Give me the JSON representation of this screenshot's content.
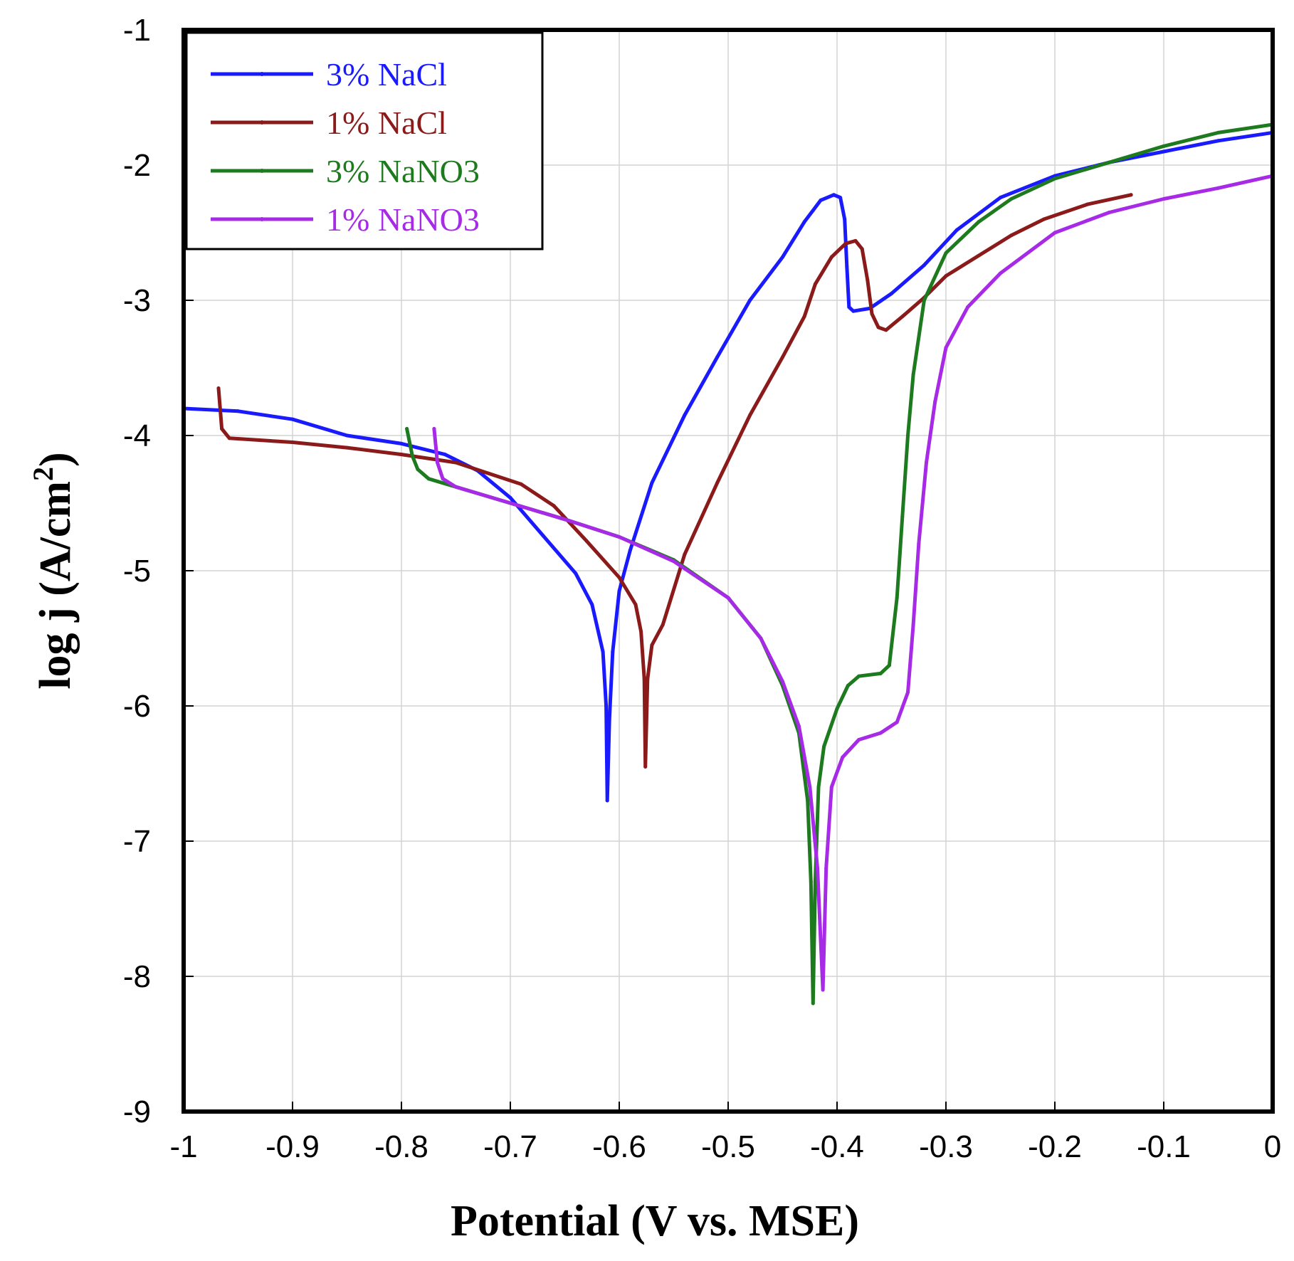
{
  "chart_data": {
    "type": "line",
    "title": "",
    "xlabel": "Potential (V vs. MSE)",
    "ylabel_main": "log j (A/cm",
    "ylabel_sup": "2",
    "ylabel_close": ")",
    "xlim": [
      -1,
      0
    ],
    "ylim": [
      -9,
      -1
    ],
    "x_ticks": [
      -1,
      -0.9,
      -0.8,
      -0.7,
      -0.6,
      -0.5,
      -0.4,
      -0.3,
      -0.2,
      -0.1,
      0
    ],
    "x_tick_labels": [
      "-1",
      "-0.9",
      "-0.8",
      "-0.7",
      "-0.6",
      "-0.5",
      "-0.4",
      "-0.3",
      "-0.2",
      "-0.1",
      "0"
    ],
    "y_ticks": [
      -1,
      -2,
      -3,
      -4,
      -5,
      -6,
      -7,
      -8,
      -9
    ],
    "y_tick_labels": [
      "-1",
      "-2",
      "-3",
      "-4",
      "-5",
      "-6",
      "-7",
      "-8",
      "-9"
    ],
    "legend_position": "top-left",
    "series": [
      {
        "name": "3% NaCl",
        "color": "#1a1aff",
        "points": [
          [
            -1.0,
            -3.8
          ],
          [
            -0.95,
            -3.82
          ],
          [
            -0.9,
            -3.88
          ],
          [
            -0.85,
            -4.0
          ],
          [
            -0.8,
            -4.06
          ],
          [
            -0.76,
            -4.14
          ],
          [
            -0.73,
            -4.26
          ],
          [
            -0.7,
            -4.46
          ],
          [
            -0.67,
            -4.74
          ],
          [
            -0.64,
            -5.02
          ],
          [
            -0.625,
            -5.25
          ],
          [
            -0.615,
            -5.6
          ],
          [
            -0.612,
            -6.0
          ],
          [
            -0.611,
            -6.7
          ],
          [
            -0.609,
            -6.1
          ],
          [
            -0.606,
            -5.6
          ],
          [
            -0.6,
            -5.15
          ],
          [
            -0.59,
            -4.85
          ],
          [
            -0.57,
            -4.35
          ],
          [
            -0.54,
            -3.85
          ],
          [
            -0.51,
            -3.42
          ],
          [
            -0.48,
            -3.0
          ],
          [
            -0.45,
            -2.68
          ],
          [
            -0.43,
            -2.42
          ],
          [
            -0.415,
            -2.26
          ],
          [
            -0.403,
            -2.22
          ],
          [
            -0.397,
            -2.24
          ],
          [
            -0.393,
            -2.4
          ],
          [
            -0.391,
            -2.75
          ],
          [
            -0.389,
            -3.05
          ],
          [
            -0.385,
            -3.08
          ],
          [
            -0.37,
            -3.06
          ],
          [
            -0.35,
            -2.95
          ],
          [
            -0.32,
            -2.74
          ],
          [
            -0.29,
            -2.48
          ],
          [
            -0.25,
            -2.24
          ],
          [
            -0.2,
            -2.08
          ],
          [
            -0.15,
            -1.98
          ],
          [
            -0.1,
            -1.9
          ],
          [
            -0.05,
            -1.82
          ],
          [
            0.0,
            -1.76
          ]
        ]
      },
      {
        "name": "1% NaCl",
        "color": "#8b1a1a",
        "points": [
          [
            -0.968,
            -3.65
          ],
          [
            -0.965,
            -3.95
          ],
          [
            -0.958,
            -4.02
          ],
          [
            -0.9,
            -4.05
          ],
          [
            -0.85,
            -4.09
          ],
          [
            -0.8,
            -4.14
          ],
          [
            -0.75,
            -4.2
          ],
          [
            -0.72,
            -4.28
          ],
          [
            -0.69,
            -4.36
          ],
          [
            -0.66,
            -4.52
          ],
          [
            -0.63,
            -4.78
          ],
          [
            -0.6,
            -5.05
          ],
          [
            -0.585,
            -5.25
          ],
          [
            -0.58,
            -5.45
          ],
          [
            -0.577,
            -5.8
          ],
          [
            -0.576,
            -6.45
          ],
          [
            -0.574,
            -5.8
          ],
          [
            -0.57,
            -5.55
          ],
          [
            -0.56,
            -5.4
          ],
          [
            -0.54,
            -4.88
          ],
          [
            -0.51,
            -4.35
          ],
          [
            -0.48,
            -3.85
          ],
          [
            -0.45,
            -3.42
          ],
          [
            -0.43,
            -3.12
          ],
          [
            -0.42,
            -2.88
          ],
          [
            -0.405,
            -2.68
          ],
          [
            -0.392,
            -2.58
          ],
          [
            -0.383,
            -2.56
          ],
          [
            -0.377,
            -2.62
          ],
          [
            -0.372,
            -2.85
          ],
          [
            -0.368,
            -3.1
          ],
          [
            -0.362,
            -3.2
          ],
          [
            -0.355,
            -3.22
          ],
          [
            -0.34,
            -3.12
          ],
          [
            -0.32,
            -2.98
          ],
          [
            -0.3,
            -2.82
          ],
          [
            -0.27,
            -2.67
          ],
          [
            -0.24,
            -2.52
          ],
          [
            -0.21,
            -2.4
          ],
          [
            -0.17,
            -2.29
          ],
          [
            -0.13,
            -2.22
          ]
        ]
      },
      {
        "name": "3% NaNO3",
        "color": "#1e7a1e",
        "points": [
          [
            -0.795,
            -3.95
          ],
          [
            -0.79,
            -4.15
          ],
          [
            -0.785,
            -4.25
          ],
          [
            -0.775,
            -4.32
          ],
          [
            -0.75,
            -4.38
          ],
          [
            -0.7,
            -4.5
          ],
          [
            -0.65,
            -4.62
          ],
          [
            -0.6,
            -4.75
          ],
          [
            -0.55,
            -4.92
          ],
          [
            -0.5,
            -5.2
          ],
          [
            -0.47,
            -5.5
          ],
          [
            -0.45,
            -5.85
          ],
          [
            -0.435,
            -6.2
          ],
          [
            -0.427,
            -6.7
          ],
          [
            -0.424,
            -7.3
          ],
          [
            -0.422,
            -8.2
          ],
          [
            -0.42,
            -7.3
          ],
          [
            -0.417,
            -6.6
          ],
          [
            -0.412,
            -6.3
          ],
          [
            -0.4,
            -6.02
          ],
          [
            -0.39,
            -5.85
          ],
          [
            -0.38,
            -5.78
          ],
          [
            -0.36,
            -5.76
          ],
          [
            -0.352,
            -5.7
          ],
          [
            -0.345,
            -5.2
          ],
          [
            -0.34,
            -4.6
          ],
          [
            -0.335,
            -4.0
          ],
          [
            -0.33,
            -3.55
          ],
          [
            -0.32,
            -3.0
          ],
          [
            -0.3,
            -2.65
          ],
          [
            -0.27,
            -2.42
          ],
          [
            -0.24,
            -2.25
          ],
          [
            -0.2,
            -2.1
          ],
          [
            -0.15,
            -1.98
          ],
          [
            -0.1,
            -1.86
          ],
          [
            -0.05,
            -1.76
          ],
          [
            0.0,
            -1.7
          ]
        ]
      },
      {
        "name": "1% NaNO3",
        "color": "#a62ae6",
        "points": [
          [
            -0.77,
            -3.95
          ],
          [
            -0.767,
            -4.2
          ],
          [
            -0.762,
            -4.32
          ],
          [
            -0.75,
            -4.38
          ],
          [
            -0.7,
            -4.5
          ],
          [
            -0.65,
            -4.62
          ],
          [
            -0.6,
            -4.75
          ],
          [
            -0.55,
            -4.93
          ],
          [
            -0.5,
            -5.2
          ],
          [
            -0.47,
            -5.5
          ],
          [
            -0.45,
            -5.82
          ],
          [
            -0.435,
            -6.15
          ],
          [
            -0.425,
            -6.6
          ],
          [
            -0.418,
            -7.2
          ],
          [
            -0.413,
            -8.1
          ],
          [
            -0.41,
            -7.2
          ],
          [
            -0.405,
            -6.6
          ],
          [
            -0.395,
            -6.38
          ],
          [
            -0.38,
            -6.25
          ],
          [
            -0.36,
            -6.2
          ],
          [
            -0.345,
            -6.12
          ],
          [
            -0.335,
            -5.9
          ],
          [
            -0.33,
            -5.4
          ],
          [
            -0.325,
            -4.8
          ],
          [
            -0.318,
            -4.2
          ],
          [
            -0.31,
            -3.75
          ],
          [
            -0.3,
            -3.35
          ],
          [
            -0.28,
            -3.05
          ],
          [
            -0.25,
            -2.8
          ],
          [
            -0.2,
            -2.5
          ],
          [
            -0.15,
            -2.35
          ],
          [
            -0.1,
            -2.25
          ],
          [
            -0.05,
            -2.17
          ],
          [
            0.0,
            -2.08
          ]
        ]
      }
    ]
  }
}
